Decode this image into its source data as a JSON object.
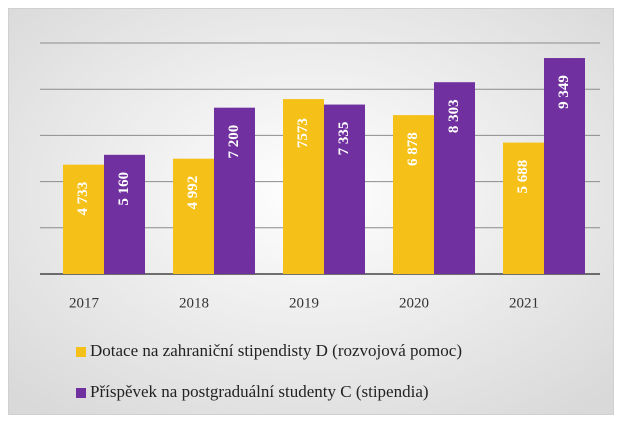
{
  "chart_data": {
    "type": "bar",
    "categories": [
      "2017",
      "2018",
      "2019",
      "2020",
      "2021"
    ],
    "series": [
      {
        "name": "Dotace na zahraniční stipendisty D (rozvojová pomoc)",
        "color": "#f5c018",
        "values": [
          4733,
          4992,
          7573,
          6878,
          5688
        ],
        "value_labels": [
          "4 733",
          "4 992",
          "7573",
          "6 878",
          "5 688"
        ]
      },
      {
        "name": "Příspěvek na postgraduální studenty C (stipendia)",
        "color": "#7030a0",
        "values": [
          5160,
          7200,
          7335,
          8303,
          9349
        ],
        "value_labels": [
          "5 160",
          "7 200",
          "7 335",
          "8 303",
          "9 349"
        ]
      }
    ],
    "ylim": [
      0,
      10000
    ],
    "yticks": [
      0,
      2000,
      4000,
      6000,
      8000,
      10000
    ],
    "grid": true,
    "legend": "bottom"
  }
}
